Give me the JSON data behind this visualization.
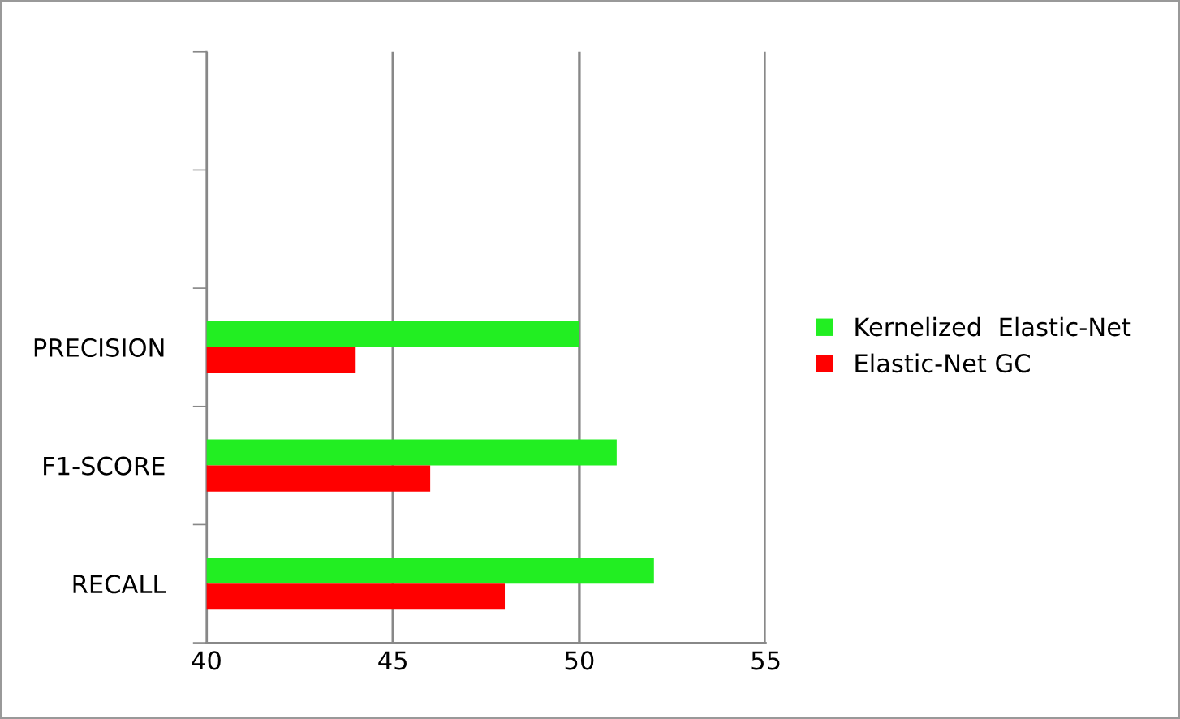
{
  "chart_data": {
    "type": "bar",
    "orientation": "horizontal",
    "categories": [
      null,
      null,
      "PRECISION",
      "F1-SCORE",
      "RECALL"
    ],
    "series": [
      {
        "name": "Kernelized  Elastic-Net",
        "color": "#22ee22",
        "values": [
          null,
          null,
          50,
          51,
          52
        ]
      },
      {
        "name": "Elastic-Net GC",
        "color": "#ff0000",
        "values": [
          null,
          null,
          44,
          46,
          48
        ]
      }
    ],
    "xlim": [
      40,
      55
    ],
    "xticks": [
      40,
      45,
      50,
      55
    ],
    "grid": "x",
    "legend": "right"
  }
}
